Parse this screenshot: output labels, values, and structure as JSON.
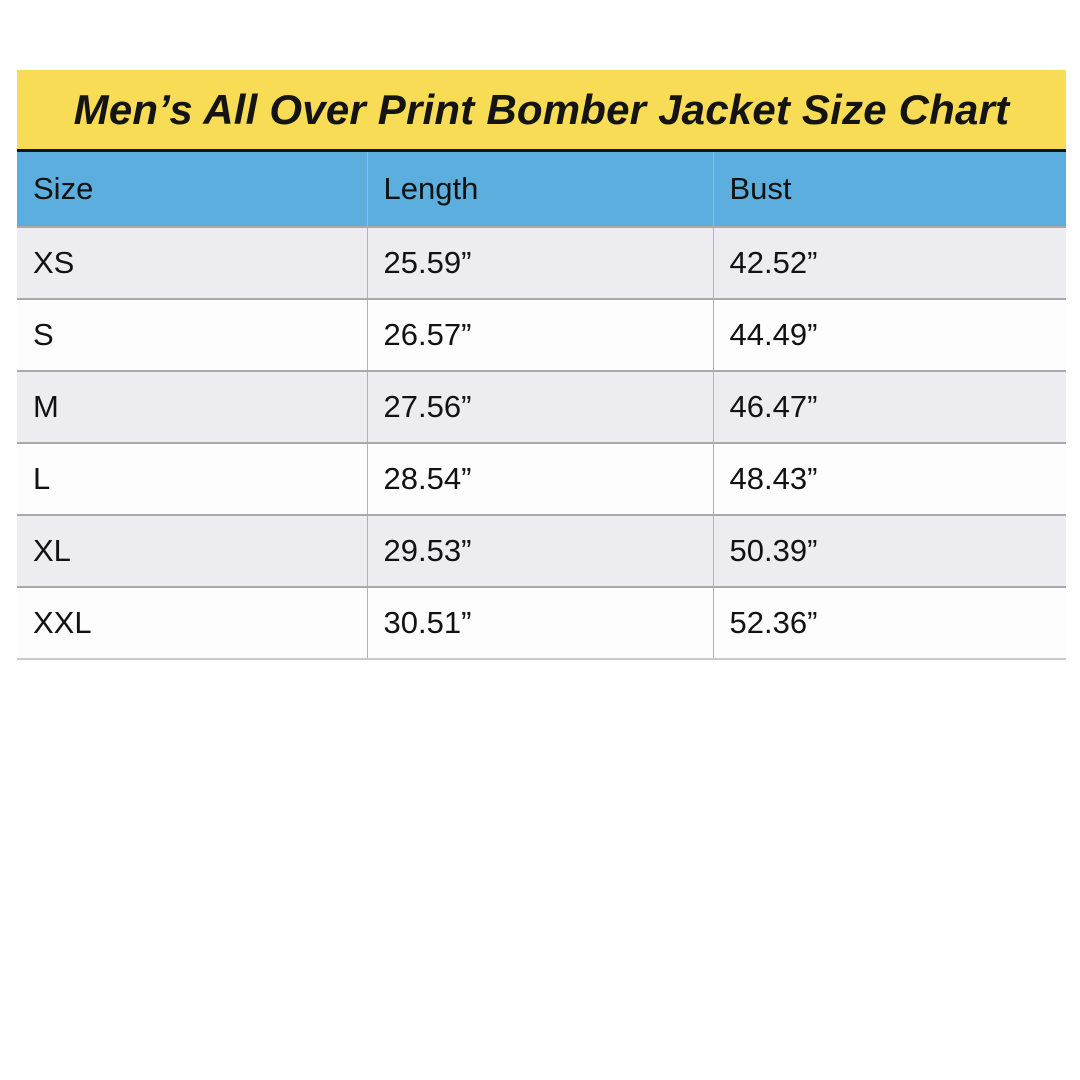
{
  "colors": {
    "banner_yellow": "#F8DC55",
    "banner_divider_black": "#141414",
    "header_blue": "#5BAEDD",
    "row_alt_gray": "#EDECF0",
    "row_white": "#FDFDFE",
    "grid_line_gray": "#A9A9AD",
    "text_black": "#121212"
  },
  "chart_data": {
    "type": "table",
    "title": "Men’s All Over Print Bomber Jacket Size Chart",
    "columns": [
      "Size",
      "Length",
      "Bust"
    ],
    "rows": [
      {
        "size": "XS",
        "length": "25.59”",
        "bust": "42.52”"
      },
      {
        "size": "S",
        "length": "26.57”",
        "bust": "44.49”"
      },
      {
        "size": "M",
        "length": "27.56”",
        "bust": "46.47”"
      },
      {
        "size": "L",
        "length": "28.54”",
        "bust": "48.43”"
      },
      {
        "size": "XL",
        "length": "29.53”",
        "bust": "50.39”"
      },
      {
        "size": "XXL",
        "length": "30.51”",
        "bust": "52.36”"
      }
    ]
  }
}
